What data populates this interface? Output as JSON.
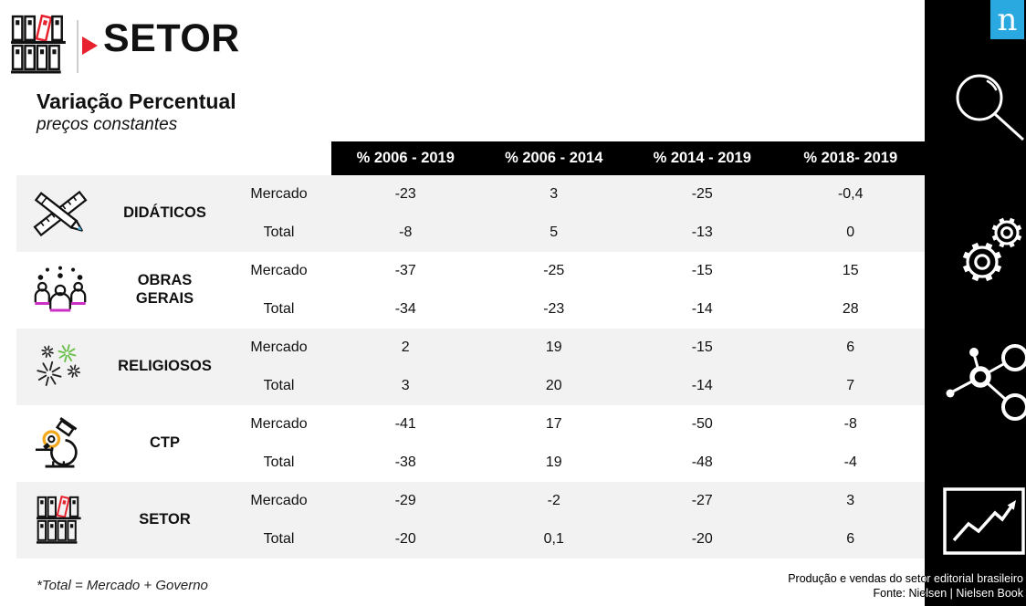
{
  "slide": {
    "title": "SETOR",
    "heading": "Variação Percentual",
    "subheading": "preços constantes"
  },
  "table": {
    "columns": [
      "% 2006 - 2019",
      "% 2006 - 2014",
      "% 2014 - 2019",
      "% 2018- 2019"
    ],
    "row_label_mercado": "Mercado",
    "row_label_total": "Total",
    "groups": [
      {
        "name": "DIDÁTICOS",
        "icon": "ruler-pencil-icon",
        "mercado": [
          "-23",
          "3",
          "-25",
          "-0,4"
        ],
        "total": [
          "-8",
          "5",
          "-13",
          "0"
        ]
      },
      {
        "name": "OBRAS GERAIS",
        "icon": "audience-icon",
        "mercado": [
          "-37",
          "-25",
          "-15",
          "15"
        ],
        "total": [
          "-34",
          "-23",
          "-14",
          "28"
        ]
      },
      {
        "name": "RELIGIOSOS",
        "icon": "sparkles-icon",
        "mercado": [
          "2",
          "19",
          "-15",
          "6"
        ],
        "total": [
          "3",
          "20",
          "-14",
          "7"
        ]
      },
      {
        "name": "CTP",
        "icon": "microscope-icon",
        "mercado": [
          "-41",
          "17",
          "-50",
          "-8"
        ],
        "total": [
          "-38",
          "19",
          "-48",
          "-4"
        ]
      },
      {
        "name": "SETOR",
        "icon": "bookshelf-icon",
        "mercado": [
          "-29",
          "-2",
          "-27",
          "3"
        ],
        "total": [
          "-20",
          "0,1",
          "-20",
          "6"
        ]
      }
    ]
  },
  "footnote": "*Total = Mercado + Governo",
  "source": {
    "line1": "Produção e vendas do setor editorial brasileiro",
    "line2": "Fonte: Nielsen | Nielsen Book"
  },
  "sidebar": {
    "logo_letter": "n",
    "icons": [
      "nielsen-logo",
      "magnifier-icon",
      "gears-icon",
      "network-icon",
      "chart-trend-icon"
    ]
  },
  "colors": {
    "header_bg": "#000000",
    "band_gray": "#f2f2f2",
    "nielsen_blue": "#29a9e0",
    "red": "#e8212e",
    "magenta": "#cc2fc4",
    "green": "#6abf4b",
    "yellow": "#f5a81c",
    "cyan": "#4cb8e8",
    "ink": "#111111"
  }
}
